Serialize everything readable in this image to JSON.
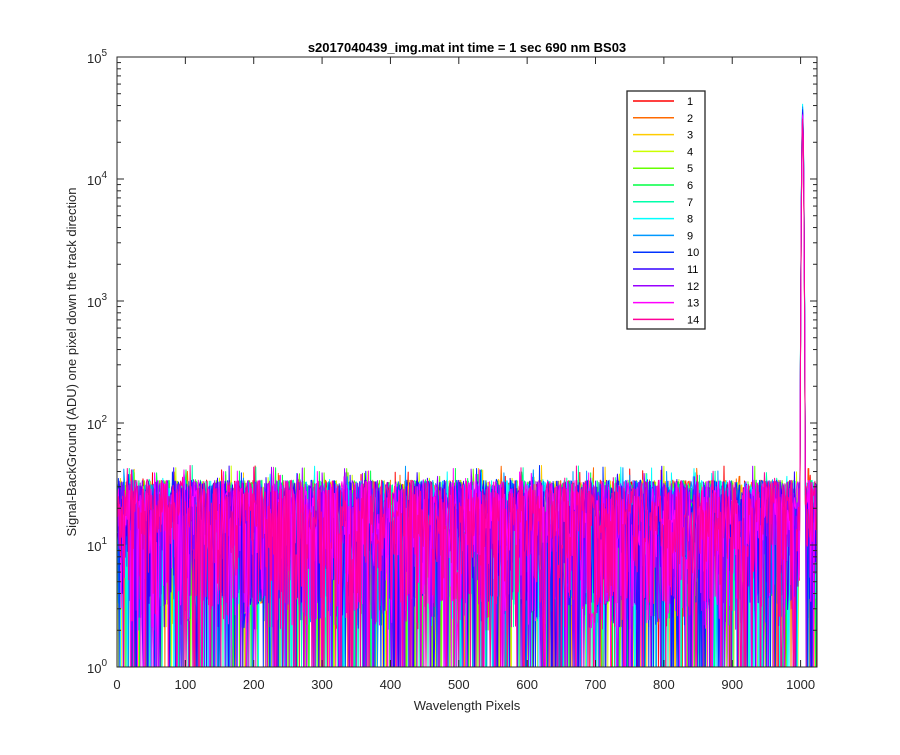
{
  "chart_data": {
    "type": "line",
    "title": "s2017040439_img.mat int time = 1 sec  690 nm BS03",
    "xlabel": "Wavelength Pixels",
    "ylabel": "Signal-BackGround (ADU) one pixel down the track direction",
    "xlim": [
      0,
      1024
    ],
    "ylim": [
      1,
      100000
    ],
    "yscale": "log",
    "x_ticks": [
      "0",
      "100",
      "200",
      "300",
      "400",
      "500",
      "600",
      "700",
      "800",
      "900",
      "1000"
    ],
    "y_ticks": [
      {
        "base": "10",
        "exp": "0"
      },
      {
        "base": "10",
        "exp": "1"
      },
      {
        "base": "10",
        "exp": "2"
      },
      {
        "base": "10",
        "exp": "3"
      },
      {
        "base": "10",
        "exp": "4"
      },
      {
        "base": "10",
        "exp": "5"
      }
    ],
    "legend_position": "top-right",
    "noise_band_adu": [
      1,
      45
    ],
    "peak": {
      "x": 1003,
      "y_range": [
        31000,
        41000
      ]
    },
    "series": [
      {
        "name": "1",
        "color": "#FF0000",
        "peak": 31000
      },
      {
        "name": "2",
        "color": "#FF6A00",
        "peak": 32000
      },
      {
        "name": "3",
        "color": "#FFCC00",
        "peak": 33000
      },
      {
        "name": "4",
        "color": "#CCFF00",
        "peak": 34000
      },
      {
        "name": "5",
        "color": "#66FF00",
        "peak": 35000
      },
      {
        "name": "6",
        "color": "#00FF44",
        "peak": 36000
      },
      {
        "name": "7",
        "color": "#00FFAA",
        "peak": 38000
      },
      {
        "name": "8",
        "color": "#00FFFF",
        "peak": 41000
      },
      {
        "name": "9",
        "color": "#0099FF",
        "peak": 39000
      },
      {
        "name": "10",
        "color": "#0033FF",
        "peak": 37000
      },
      {
        "name": "11",
        "color": "#3300FF",
        "peak": 35000
      },
      {
        "name": "12",
        "color": "#9900FF",
        "peak": 34000
      },
      {
        "name": "13",
        "color": "#FF00FF",
        "peak": 33000
      },
      {
        "name": "14",
        "color": "#FF0099",
        "peak": 31000
      }
    ]
  }
}
